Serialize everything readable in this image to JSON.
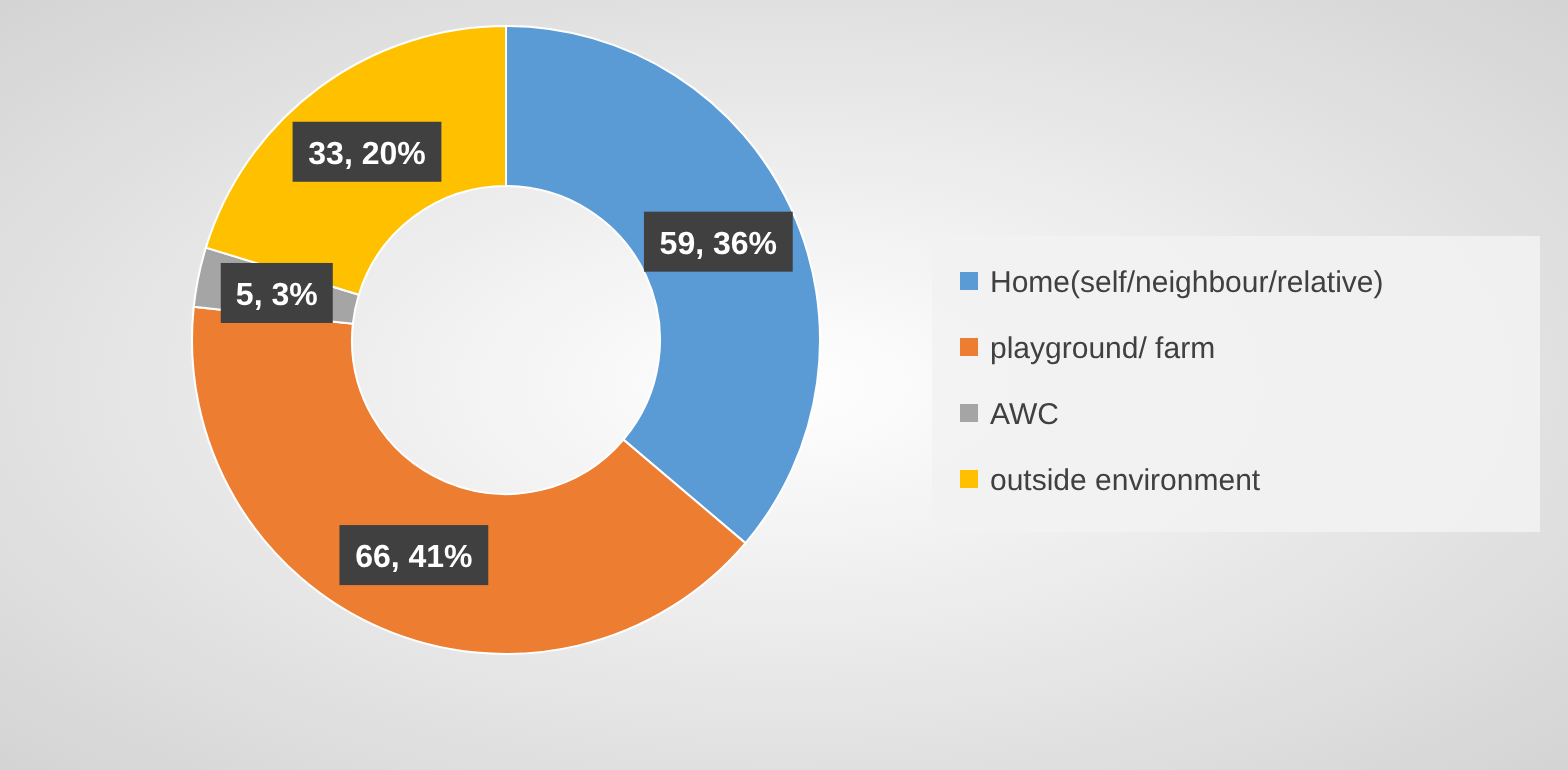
{
  "chart_data": {
    "type": "donut",
    "categories": [
      "Home(self/neighbour/relative)",
      "playground/ farm",
      "AWC",
      "outside environment"
    ],
    "values": [
      59,
      66,
      5,
      33
    ],
    "colors": [
      "#5b9bd5",
      "#ed7d31",
      "#a5a5a5",
      "#ffc000"
    ],
    "value_labels": [
      "59, 36%",
      "66, 41%",
      "5, 3%",
      "33, 20%"
    ],
    "legend": "right"
  }
}
